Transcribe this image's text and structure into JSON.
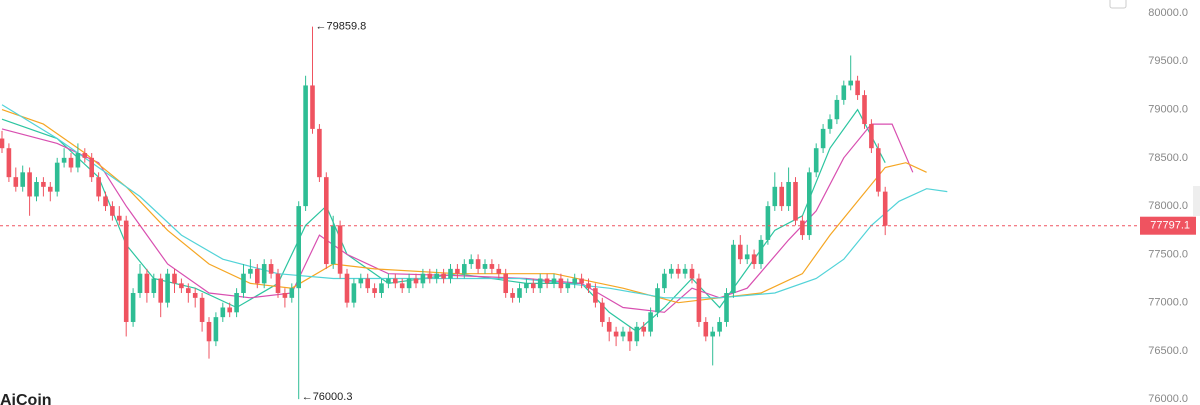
{
  "chart_data": {
    "type": "candlestick",
    "watermark": "AiCoin",
    "up_color": "#2ebd94",
    "down_color": "#ef5360",
    "ylim": [
      75940,
      80135
    ],
    "yticks": [
      {
        "value": 76000,
        "label": "76000.0"
      },
      {
        "value": 76500,
        "label": "76500.0"
      },
      {
        "value": 77000,
        "label": "77000.0"
      },
      {
        "value": 77500,
        "label": "77500.0"
      },
      {
        "value": 78000,
        "label": "78000.0"
      },
      {
        "value": 78500,
        "label": "78500.0"
      },
      {
        "value": 79000,
        "label": "79000.0"
      },
      {
        "value": 79500,
        "label": "79500.0"
      },
      {
        "value": 80000,
        "label": "80000.0"
      }
    ],
    "open": [
      78700,
      78600,
      78300,
      78200,
      78350,
      78100,
      78250,
      78200,
      78150,
      78450,
      78500,
      78400,
      78550,
      78500,
      78300,
      78100,
      78000,
      77900,
      77850,
      76800,
      77100,
      77300,
      77100,
      77250,
      77000,
      77300,
      77200,
      77150,
      77100,
      77050,
      76800,
      76600,
      76850,
      76950,
      76900,
      77100,
      77300,
      77350,
      77200,
      77400,
      77300,
      77100,
      77050,
      77150,
      78000,
      79250,
      78800,
      78300,
      77400,
      77800,
      77300,
      77000,
      77200,
      77250,
      77150,
      77100,
      77200,
      77250,
      77200,
      77150,
      77250,
      77200,
      77300,
      77250,
      77300,
      77250,
      77350,
      77300,
      77400,
      77450,
      77350,
      77400,
      77350,
      77300,
      77100,
      77050,
      77150,
      77200,
      77150,
      77250,
      77200,
      77250,
      77150,
      77200,
      77250,
      77200,
      77150,
      77000,
      76800,
      76700,
      76650,
      76700,
      76600,
      76750,
      76700,
      76900,
      77150,
      77300,
      77350,
      77300,
      77350,
      77250,
      76800,
      76650,
      76700,
      76800,
      77100,
      77600,
      77450,
      77500,
      77400,
      77650,
      78000,
      78200,
      78000,
      78250,
      77850,
      77700,
      78350,
      78600,
      78800,
      78900,
      79100,
      79250,
      79300,
      79150,
      78850,
      78600,
      78150
    ],
    "high": [
      78780,
      78650,
      78400,
      78420,
      78400,
      78300,
      78300,
      78250,
      78500,
      78600,
      78550,
      78650,
      78600,
      78550,
      78350,
      78150,
      78050,
      78000,
      77900,
      77150,
      77400,
      77350,
      77300,
      77300,
      77350,
      77350,
      77250,
      77200,
      77150,
      77100,
      76850,
      76900,
      77000,
      77000,
      77150,
      77400,
      77450,
      77400,
      77450,
      77450,
      77350,
      77150,
      77200,
      78050,
      79350,
      79859.8,
      78850,
      78350,
      77900,
      77850,
      77350,
      77250,
      77300,
      77300,
      77200,
      77250,
      77300,
      77300,
      77250,
      77300,
      77300,
      77350,
      77350,
      77350,
      77350,
      77400,
      77400,
      77450,
      77500,
      77500,
      77450,
      77450,
      77400,
      77350,
      77150,
      77200,
      77250,
      77250,
      77300,
      77300,
      77300,
      77300,
      77250,
      77300,
      77300,
      77250,
      77200,
      77050,
      76850,
      76750,
      76750,
      76750,
      76800,
      76800,
      76950,
      77200,
      77350,
      77400,
      77400,
      77400,
      77400,
      77300,
      76850,
      76750,
      76850,
      77150,
      77650,
      77700,
      77600,
      77550,
      77700,
      78050,
      78350,
      78250,
      78400,
      78300,
      77900,
      78400,
      78650,
      78850,
      78950,
      79150,
      79300,
      79560,
      79350,
      79200,
      78900,
      78650,
      78200
    ],
    "low": [
      78550,
      78250,
      78150,
      78150,
      77900,
      78050,
      78100,
      78050,
      78100,
      78400,
      78350,
      78350,
      78450,
      78250,
      78050,
      77950,
      77850,
      77800,
      76650,
      76750,
      77050,
      77000,
      77050,
      76850,
      76950,
      77100,
      77100,
      77000,
      76950,
      76700,
      76420,
      76550,
      76800,
      76850,
      76850,
      77050,
      77250,
      77150,
      77150,
      77250,
      77050,
      76950,
      77000,
      76000.3,
      77950,
      78750,
      78250,
      77350,
      77350,
      77250,
      76950,
      76950,
      77150,
      77100,
      77050,
      77050,
      77150,
      77150,
      77100,
      77100,
      77150,
      77150,
      77200,
      77200,
      77200,
      77200,
      77250,
      77250,
      77350,
      77300,
      77300,
      77300,
      77250,
      77050,
      77000,
      77000,
      77100,
      77100,
      77100,
      77150,
      77150,
      77100,
      77100,
      77150,
      77150,
      77100,
      76950,
      76750,
      76600,
      76550,
      76600,
      76500,
      76550,
      76650,
      76650,
      76850,
      77100,
      77250,
      77250,
      77250,
      77200,
      76750,
      76600,
      76350,
      76650,
      76750,
      77050,
      77400,
      77400,
      77350,
      77350,
      77600,
      77950,
      77950,
      77950,
      77800,
      77650,
      77650,
      78300,
      78550,
      78750,
      78850,
      79050,
      79200,
      79100,
      78800,
      78550,
      78100,
      77700
    ],
    "close": [
      78600,
      78300,
      78200,
      78350,
      78100,
      78250,
      78200,
      78150,
      78450,
      78500,
      78400,
      78550,
      78500,
      78300,
      78100,
      78000,
      77900,
      77850,
      76800,
      77100,
      77300,
      77100,
      77250,
      77000,
      77300,
      77200,
      77150,
      77100,
      77050,
      76800,
      76600,
      76850,
      76950,
      76900,
      77100,
      77300,
      77350,
      77200,
      77400,
      77300,
      77100,
      77050,
      77150,
      78000,
      79250,
      78800,
      78300,
      77400,
      77800,
      77300,
      77000,
      77200,
      77250,
      77150,
      77100,
      77200,
      77250,
      77200,
      77150,
      77250,
      77200,
      77300,
      77250,
      77300,
      77250,
      77350,
      77300,
      77400,
      77450,
      77350,
      77400,
      77350,
      77300,
      77100,
      77050,
      77150,
      77200,
      77150,
      77250,
      77200,
      77250,
      77150,
      77200,
      77250,
      77200,
      77150,
      77000,
      76800,
      76700,
      76650,
      76700,
      76600,
      76750,
      76700,
      76900,
      77150,
      77300,
      77350,
      77300,
      77350,
      77250,
      76800,
      76650,
      76700,
      76800,
      77100,
      77600,
      77450,
      77500,
      77400,
      77650,
      78000,
      78200,
      78000,
      78250,
      77850,
      77700,
      78350,
      78600,
      78800,
      78900,
      79100,
      79250,
      79300,
      79150,
      78850,
      78600,
      78150,
      77797.1
    ],
    "lines": [
      {
        "color": "#2cc5a0",
        "x": [
          0,
          8,
          14,
          18,
          22,
          28,
          34,
          40,
          44,
          47,
          50,
          56,
          66,
          76,
          84,
          88,
          92,
          96,
          100,
          104,
          108,
          112,
          116,
          120,
          124,
          128
        ],
        "values": [
          78900,
          78700,
          78300,
          77600,
          77250,
          77150,
          76950,
          77200,
          77800,
          78000,
          77500,
          77200,
          77300,
          77200,
          77200,
          76900,
          76700,
          76950,
          77250,
          76950,
          77350,
          77750,
          77900,
          78600,
          79000,
          78450
        ]
      },
      {
        "color": "#d84fb0",
        "x": [
          0,
          8,
          14,
          18,
          24,
          30,
          36,
          42,
          46,
          50,
          56,
          66,
          76,
          84,
          90,
          96,
          100,
          104,
          108,
          114,
          118,
          122,
          126,
          129,
          132
        ],
        "values": [
          78800,
          78650,
          78450,
          78000,
          77400,
          77100,
          77050,
          77100,
          77700,
          77500,
          77300,
          77280,
          77250,
          77200,
          76950,
          76900,
          77150,
          77050,
          77150,
          77650,
          77950,
          78500,
          78850,
          78850,
          78350
        ]
      },
      {
        "color": "#f5a623",
        "x": [
          0,
          6,
          12,
          18,
          24,
          30,
          36,
          42,
          48,
          54,
          66,
          80,
          90,
          98,
          104,
          110,
          116,
          120,
          124,
          128,
          131,
          134
        ],
        "values": [
          79000,
          78850,
          78550,
          78200,
          77750,
          77400,
          77200,
          77150,
          77400,
          77350,
          77300,
          77300,
          77150,
          77000,
          77050,
          77100,
          77300,
          77700,
          78050,
          78400,
          78450,
          78350
        ]
      },
      {
        "color": "#52d3d8",
        "x": [
          0,
          8,
          14,
          20,
          26,
          32,
          40,
          48,
          60,
          75,
          88,
          96,
          104,
          112,
          118,
          122,
          126,
          130,
          134,
          137
        ],
        "values": [
          79050,
          78700,
          78400,
          78100,
          77700,
          77450,
          77300,
          77250,
          77250,
          77250,
          77150,
          77050,
          77050,
          77100,
          77250,
          77450,
          77800,
          78050,
          78180,
          78150
        ]
      }
    ]
  }
}
